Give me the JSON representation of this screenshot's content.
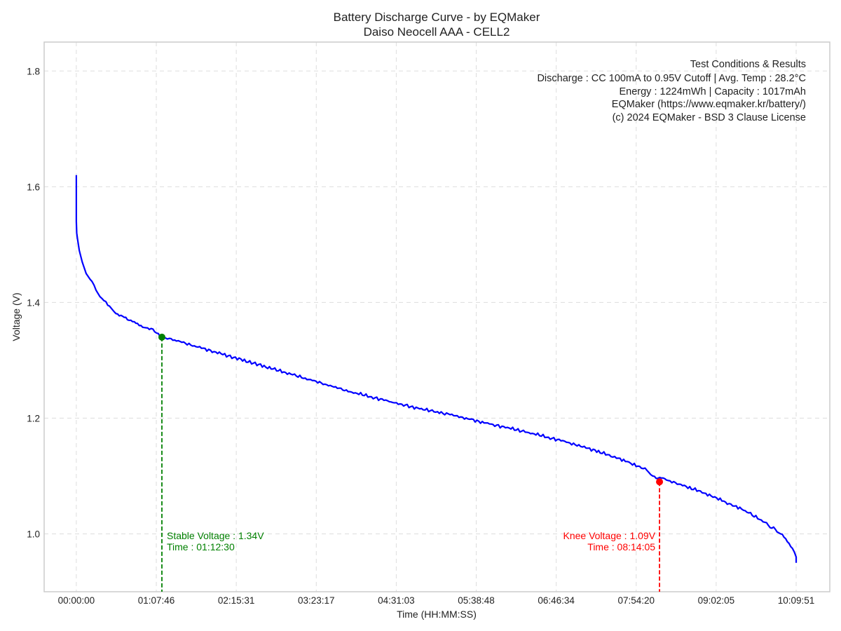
{
  "chart_data": {
    "type": "line",
    "title": "Battery Discharge Curve - by EQMaker",
    "subtitle": "Daiso Neocell AAA - CELL2",
    "xlabel": "Time (HH:MM:SS)",
    "ylabel": "Voltage (V)",
    "xlim_seconds": [
      -1635,
      38300
    ],
    "ylim": [
      0.9,
      1.85
    ],
    "x_ticks_seconds": [
      0,
      4066,
      8131,
      12197,
      16263,
      20328,
      24394,
      28460,
      32525,
      36591
    ],
    "x_tick_labels": [
      "00:00:00",
      "01:07:46",
      "02:15:31",
      "03:23:17",
      "04:31:03",
      "05:38:48",
      "06:46:34",
      "07:54:20",
      "09:02:05",
      "10:09:51"
    ],
    "y_ticks": [
      1.0,
      1.2,
      1.4,
      1.6,
      1.8
    ],
    "y_tick_labels": [
      "1.0",
      "1.2",
      "1.4",
      "1.6",
      "1.8"
    ],
    "grid": true,
    "series": [
      {
        "name": "",
        "color": "#0000ff",
        "x_seconds": [
          0,
          0,
          20,
          60,
          150,
          300,
          500,
          700,
          900,
          1200,
          1600,
          2100,
          2600,
          3200,
          3800,
          4350,
          5000,
          6000,
          7000,
          8000,
          9000,
          10000,
          11000,
          12000,
          13000,
          14000,
          15000,
          16000,
          17000,
          18000,
          19000,
          20000,
          21000,
          22000,
          23000,
          24000,
          25000,
          26000,
          27000,
          28000,
          29000,
          29300,
          30000,
          31000,
          32000,
          33000,
          34000,
          35000,
          35800,
          36400,
          36591,
          36591
        ],
        "values": [
          1.62,
          1.54,
          1.52,
          1.51,
          1.49,
          1.47,
          1.45,
          1.44,
          1.43,
          1.41,
          1.395,
          1.38,
          1.37,
          1.36,
          1.355,
          1.34,
          1.335,
          1.325,
          1.315,
          1.305,
          1.295,
          1.285,
          1.275,
          1.265,
          1.255,
          1.245,
          1.237,
          1.228,
          1.22,
          1.213,
          1.206,
          1.198,
          1.19,
          1.183,
          1.175,
          1.167,
          1.158,
          1.148,
          1.137,
          1.125,
          1.11,
          1.1,
          1.093,
          1.082,
          1.07,
          1.055,
          1.04,
          1.02,
          1.0,
          0.975,
          0.96,
          0.95
        ]
      }
    ],
    "markers": [
      {
        "label": "Stable Voltage : 1.34V",
        "time_label": "Time : 01:12:30",
        "x_seconds": 4350,
        "y": 1.34,
        "color": "#008000"
      },
      {
        "label": "Knee Voltage : 1.09V",
        "time_label": "Time : 08:14:05",
        "x_seconds": 29645,
        "y": 1.09,
        "color": "#ff0000"
      }
    ],
    "info_box": [
      "Test Conditions & Results",
      "Discharge : CC 100mA to 0.95V Cutoff | Avg. Temp : 28.2°C",
      "Energy : 1224mWh | Capacity : 1017mAh",
      "EQMaker (https://www.eqmaker.kr/battery/)",
      "(c) 2024 EQMaker - BSD 3 Clause License"
    ]
  }
}
